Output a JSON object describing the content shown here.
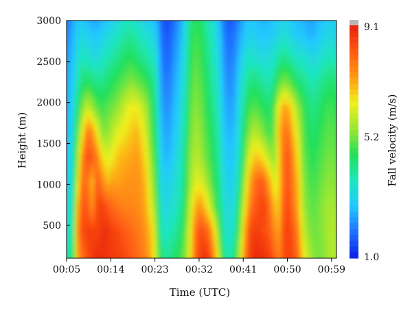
{
  "chart_data": {
    "type": "heatmap",
    "title": "",
    "xlabel": "Time (UTC)",
    "ylabel": "Height (m)",
    "colorbar_label": "Fall velocity (m/s)",
    "x_ticks": [
      "00:05",
      "00:14",
      "00:23",
      "00:32",
      "00:41",
      "00:50",
      "00:59"
    ],
    "x_range_minutes": [
      5,
      60
    ],
    "y_ticks": [
      500,
      1000,
      1500,
      2000,
      2500,
      3000
    ],
    "y_range": [
      100,
      3000
    ],
    "colorbar_ticks": [
      "9.1",
      "5.2",
      "1.0"
    ],
    "value_range": [
      1.0,
      9.1
    ],
    "colormap": [
      "#0a1ee6",
      "#1f6fff",
      "#22c8ff",
      "#1fe6c0",
      "#23e05a",
      "#9be632",
      "#f0ef1e",
      "#ff9a14",
      "#ff5a12",
      "#e8200f"
    ],
    "colorbar_over_color": "#b8b8b8",
    "grid": false,
    "columns_minute": [
      5,
      6,
      7,
      8,
      9,
      10,
      11,
      12,
      13,
      14,
      15,
      16,
      17,
      18,
      19,
      20,
      21,
      22,
      23,
      24,
      25,
      26,
      27,
      28,
      29,
      30,
      31,
      32,
      33,
      34,
      35,
      36,
      37,
      38,
      39,
      40,
      41,
      42,
      43,
      44,
      45,
      46,
      47,
      48,
      49,
      50,
      51,
      52,
      53,
      54,
      55,
      56,
      57,
      58,
      59,
      60
    ],
    "rows_height_m": [
      100,
      400,
      700,
      1000,
      1300,
      1600,
      1900,
      2200,
      2500,
      2800,
      3000
    ],
    "values_by_row": [
      [
        3.8,
        4.6,
        7.2,
        8.0,
        8.4,
        8.7,
        8.9,
        8.9,
        8.8,
        8.7,
        8.6,
        8.5,
        8.4,
        8.2,
        8.0,
        7.8,
        7.5,
        7.0,
        5.8,
        4.4,
        4.0,
        4.2,
        4.5,
        4.8,
        5.4,
        6.5,
        8.0,
        8.6,
        8.8,
        8.4,
        7.2,
        5.5,
        4.0,
        3.8,
        4.4,
        5.8,
        7.5,
        8.5,
        8.9,
        8.9,
        8.8,
        8.6,
        8.2,
        7.6,
        8.4,
        8.6,
        8.4,
        7.8,
        6.5,
        5.8,
        5.4,
        5.2,
        5.3,
        5.6,
        5.8,
        5.6
      ],
      [
        3.4,
        4.2,
        7.6,
        8.4,
        8.6,
        8.6,
        8.5,
        8.8,
        8.8,
        8.6,
        8.5,
        8.3,
        8.1,
        8.0,
        7.8,
        7.6,
        7.3,
        6.8,
        5.6,
        3.8,
        3.6,
        3.8,
        4.0,
        4.4,
        5.2,
        6.4,
        7.8,
        8.4,
        8.2,
        7.6,
        6.4,
        4.8,
        3.6,
        3.4,
        3.9,
        5.2,
        7.0,
        8.4,
        8.6,
        8.6,
        8.4,
        8.2,
        7.6,
        7.2,
        8.4,
        8.6,
        8.2,
        7.4,
        6.0,
        5.4,
        5.2,
        5.2,
        5.4,
        5.6,
        5.8,
        5.5
      ],
      [
        3.2,
        4.0,
        7.0,
        8.3,
        8.2,
        7.4,
        8.5,
        8.6,
        8.3,
        8.0,
        7.8,
        7.7,
        7.6,
        7.6,
        7.5,
        7.4,
        7.0,
        6.2,
        5.2,
        3.5,
        3.2,
        3.4,
        3.6,
        4.0,
        4.8,
        6.0,
        7.0,
        7.4,
        6.8,
        6.0,
        5.0,
        4.2,
        3.4,
        3.2,
        3.5,
        4.8,
        6.2,
        7.6,
        8.2,
        8.4,
        8.6,
        8.0,
        7.0,
        6.8,
        8.2,
        8.4,
        7.8,
        7.0,
        5.6,
        5.2,
        5.0,
        5.2,
        5.4,
        5.6,
        5.6,
        5.4
      ],
      [
        3.0,
        3.8,
        6.2,
        8.0,
        7.8,
        7.0,
        8.2,
        7.6,
        7.0,
        7.2,
        7.2,
        7.3,
        7.4,
        7.4,
        7.4,
        7.3,
        6.8,
        5.8,
        4.8,
        3.2,
        3.0,
        3.2,
        3.4,
        3.8,
        4.6,
        5.6,
        6.2,
        6.2,
        5.8,
        5.2,
        4.6,
        4.0,
        3.2,
        3.0,
        3.2,
        4.2,
        5.6,
        7.0,
        7.8,
        8.2,
        8.0,
        7.2,
        6.2,
        6.6,
        8.0,
        8.3,
        7.6,
        6.8,
        5.4,
        5.0,
        4.8,
        5.0,
        5.2,
        5.4,
        5.4,
        5.2
      ],
      [
        2.8,
        3.6,
        5.6,
        7.6,
        8.4,
        8.2,
        7.6,
        6.6,
        6.2,
        6.4,
        6.8,
        7.0,
        7.1,
        7.2,
        7.3,
        7.0,
        6.4,
        5.4,
        4.6,
        3.0,
        2.6,
        2.8,
        3.2,
        3.6,
        4.4,
        5.4,
        5.8,
        5.6,
        5.2,
        4.8,
        4.4,
        3.8,
        3.0,
        2.8,
        3.0,
        3.8,
        5.0,
        6.2,
        6.8,
        6.8,
        6.4,
        5.8,
        5.4,
        6.6,
        8.0,
        8.2,
        7.4,
        6.4,
        5.2,
        4.8,
        4.6,
        4.8,
        5.0,
        5.2,
        5.2,
        5.0
      ],
      [
        2.7,
        3.4,
        5.0,
        6.4,
        7.8,
        7.4,
        6.4,
        5.4,
        5.4,
        5.8,
        6.2,
        6.4,
        6.6,
        6.8,
        7.0,
        6.6,
        6.0,
        5.0,
        4.2,
        2.8,
        2.4,
        2.6,
        3.0,
        3.4,
        4.2,
        5.2,
        5.6,
        5.4,
        5.0,
        4.6,
        4.2,
        3.6,
        2.8,
        2.6,
        2.8,
        3.6,
        4.6,
        5.4,
        5.8,
        5.6,
        5.2,
        4.8,
        5.2,
        6.8,
        7.8,
        7.8,
        6.8,
        6.0,
        5.0,
        4.6,
        4.4,
        4.6,
        4.8,
        5.0,
        5.0,
        4.8
      ],
      [
        2.6,
        3.2,
        4.4,
        5.4,
        6.0,
        5.6,
        5.0,
        4.8,
        5.0,
        5.2,
        5.4,
        5.8,
        6.2,
        6.4,
        6.4,
        6.0,
        5.6,
        4.8,
        4.0,
        2.6,
        2.2,
        2.4,
        2.8,
        3.2,
        4.0,
        5.0,
        5.4,
        5.2,
        4.8,
        4.4,
        4.0,
        3.4,
        2.6,
        2.4,
        2.6,
        3.4,
        4.2,
        4.8,
        5.0,
        4.8,
        4.6,
        4.4,
        5.0,
        6.4,
        7.2,
        7.0,
        6.2,
        5.4,
        4.8,
        4.4,
        4.2,
        4.4,
        4.6,
        4.8,
        4.8,
        4.6
      ],
      [
        2.5,
        3.0,
        3.8,
        4.4,
        4.6,
        4.4,
        4.2,
        4.2,
        4.4,
        4.6,
        4.8,
        5.0,
        5.2,
        5.4,
        5.2,
        5.0,
        4.8,
        4.4,
        3.8,
        2.4,
        2.0,
        2.2,
        2.6,
        3.0,
        3.8,
        4.8,
        5.2,
        5.0,
        4.6,
        4.2,
        3.8,
        3.2,
        2.4,
        2.2,
        2.4,
        3.2,
        3.8,
        4.2,
        4.4,
        4.2,
        4.0,
        3.8,
        4.2,
        5.0,
        5.4,
        5.2,
        4.8,
        4.4,
        4.2,
        4.0,
        3.8,
        4.0,
        4.2,
        4.4,
        4.4,
        4.2
      ],
      [
        2.4,
        2.8,
        3.4,
        3.8,
        3.6,
        3.4,
        3.4,
        3.6,
        3.8,
        4.0,
        4.2,
        4.4,
        4.6,
        4.6,
        4.4,
        4.2,
        4.0,
        3.8,
        3.4,
        2.2,
        1.8,
        2.0,
        2.4,
        2.8,
        3.6,
        4.6,
        5.0,
        4.8,
        4.4,
        4.0,
        3.6,
        3.0,
        2.2,
        2.0,
        2.2,
        2.8,
        3.4,
        3.6,
        3.6,
        3.4,
        3.4,
        3.4,
        3.6,
        4.0,
        4.2,
        4.0,
        3.8,
        3.6,
        3.6,
        3.4,
        3.2,
        3.4,
        3.6,
        3.8,
        3.8,
        3.6
      ],
      [
        2.2,
        2.6,
        3.0,
        3.2,
        3.0,
        2.8,
        2.8,
        3.0,
        3.2,
        3.4,
        3.6,
        3.8,
        4.0,
        4.0,
        3.8,
        3.6,
        3.4,
        3.2,
        3.0,
        2.0,
        1.6,
        1.8,
        2.2,
        2.6,
        3.4,
        4.4,
        4.8,
        4.6,
        4.2,
        3.8,
        3.4,
        2.8,
        2.0,
        1.8,
        2.0,
        2.4,
        2.8,
        3.0,
        3.0,
        2.8,
        2.8,
        2.8,
        3.0,
        3.2,
        3.4,
        3.2,
        3.0,
        2.8,
        2.8,
        2.6,
        2.6,
        2.8,
        3.0,
        3.2,
        3.2,
        3.0
      ],
      [
        2.0,
        2.4,
        2.8,
        2.8,
        2.6,
        2.4,
        2.4,
        2.6,
        2.8,
        3.0,
        3.2,
        3.4,
        3.6,
        3.6,
        3.4,
        3.2,
        3.0,
        2.8,
        2.6,
        1.8,
        1.5,
        1.6,
        2.0,
        2.4,
        3.2,
        4.2,
        4.6,
        4.4,
        4.0,
        3.6,
        3.2,
        2.6,
        1.8,
        1.6,
        1.8,
        2.2,
        2.6,
        2.8,
        2.8,
        2.6,
        2.6,
        2.6,
        2.8,
        3.0,
        3.2,
        3.0,
        2.8,
        2.6,
        2.6,
        2.4,
        2.4,
        2.6,
        2.8,
        3.0,
        3.0,
        2.8
      ]
    ]
  }
}
